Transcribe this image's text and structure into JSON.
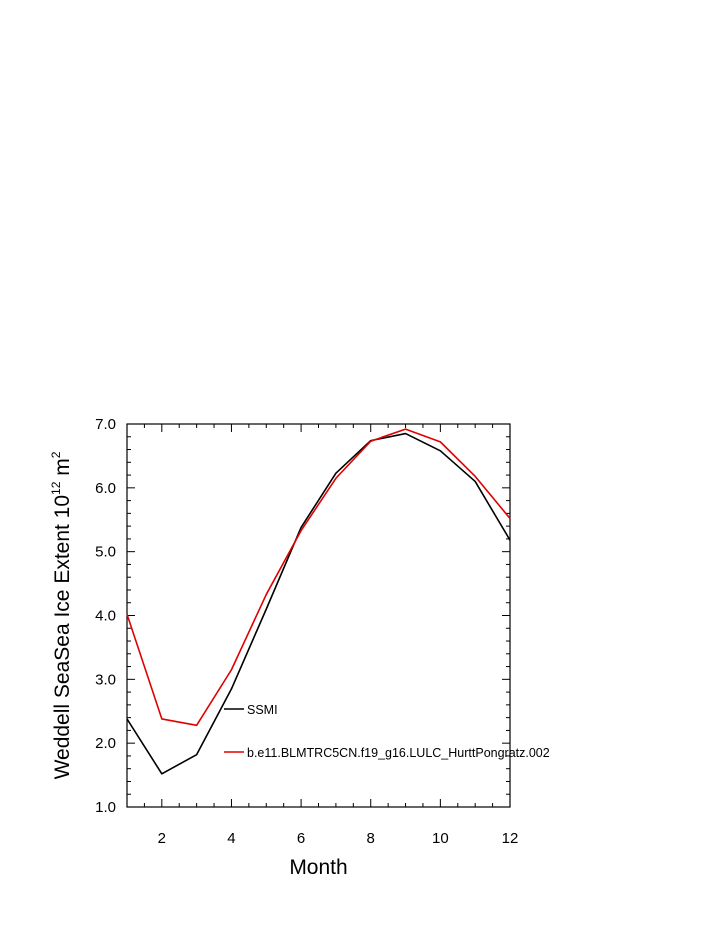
{
  "chart_data": {
    "type": "line",
    "title": "",
    "xlabel": "Month",
    "ylabel_main": "Weddell SeaSea Ice Extent 10",
    "ylabel_sup": "12",
    "ylabel_unit": " m",
    "ylabel_unit_sup": "2",
    "xlim": [
      1,
      12
    ],
    "ylim": [
      1.0,
      7.0
    ],
    "x_ticks": [
      2,
      4,
      6,
      8,
      10,
      12
    ],
    "y_ticks": [
      1.0,
      2.0,
      3.0,
      4.0,
      5.0,
      6.0,
      7.0
    ],
    "y_tick_labels": [
      "1.0",
      "2.0",
      "3.0",
      "4.0",
      "5.0",
      "6.0",
      "7.0"
    ],
    "grid": false,
    "legend_position": "bottom-right, inside plot",
    "x": [
      1,
      2,
      3,
      4,
      5,
      6,
      7,
      8,
      9,
      10,
      11,
      12
    ],
    "series": [
      {
        "name": "SSMI",
        "color": "#000000",
        "values": [
          2.38,
          1.52,
          1.82,
          2.85,
          4.1,
          5.38,
          6.23,
          6.74,
          6.85,
          6.58,
          6.1,
          5.18
        ]
      },
      {
        "name": "b.e11.BLMTRC5CN.f19_g16.LULC_HurttPongratz.002",
        "color": "#e00000",
        "values": [
          4.02,
          2.38,
          2.28,
          3.15,
          4.33,
          5.33,
          6.15,
          6.73,
          6.92,
          6.72,
          6.18,
          5.52
        ]
      }
    ]
  }
}
